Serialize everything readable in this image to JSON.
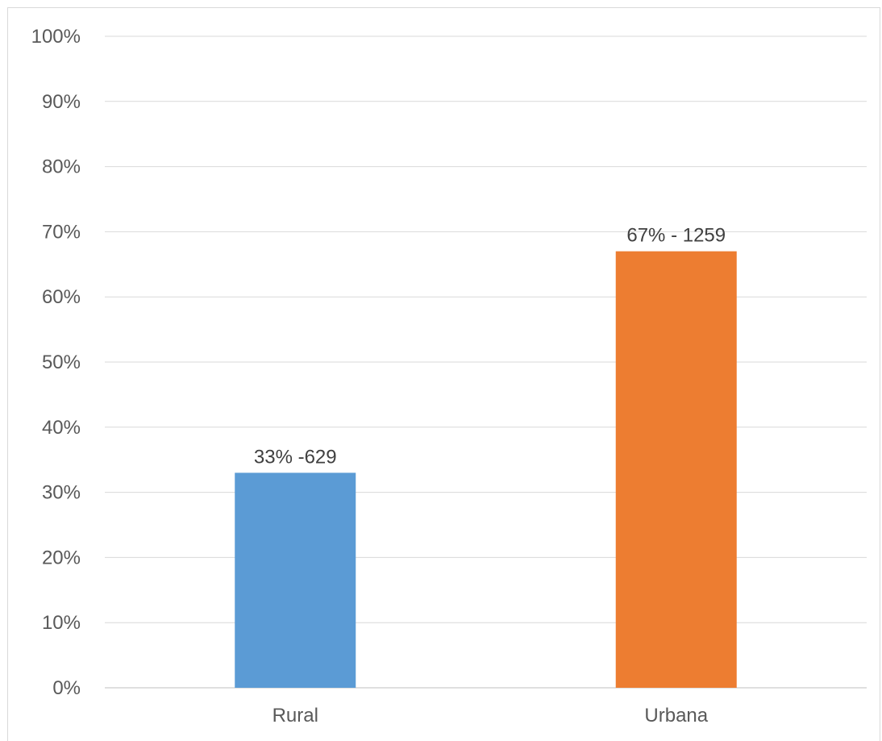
{
  "chart_data": {
    "type": "bar",
    "categories": [
      "Rural",
      "Urbana"
    ],
    "values": [
      33,
      67
    ],
    "data_labels": [
      "33% -629",
      "67% - 1259"
    ],
    "colors": [
      "#5b9bd5",
      "#ed7d31"
    ],
    "ylim": [
      0,
      100
    ],
    "yticks": [
      0,
      10,
      20,
      30,
      40,
      50,
      60,
      70,
      80,
      90,
      100
    ],
    "ytick_labels": [
      "0%",
      "10%",
      "20%",
      "30%",
      "40%",
      "50%",
      "60%",
      "70%",
      "80%",
      "90%",
      "100%"
    ],
    "grid": true,
    "legend": "none"
  }
}
